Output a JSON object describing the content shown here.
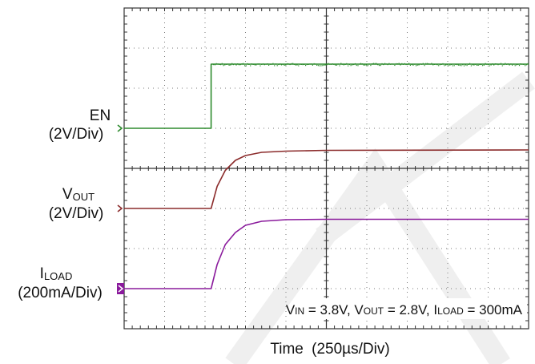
{
  "chart_data": {
    "type": "line",
    "title": "",
    "grid": true,
    "xlabel": {
      "text": "Time",
      "scale": "(250µs/Div)"
    },
    "x_divisions": 10,
    "y_divisions": 8,
    "x_unit": "div",
    "y_unit": "div",
    "annotation": {
      "vin": {
        "prefix": "V",
        "sub": "IN",
        "value": " = 3.8V, "
      },
      "vout": {
        "prefix": "V",
        "sub": "OUT",
        "value": " = 2.8V, "
      },
      "iload": {
        "prefix": "I",
        "sub": "LOAD",
        "value": " = 300mA"
      }
    },
    "series": [
      {
        "name_main": "EN",
        "name_sub": "",
        "scale": "(2V/Div)",
        "color": "#2e8b2e",
        "marker_style": "chevron",
        "ref_level_div": 5,
        "x": [
          0,
          2.15,
          2.15,
          10
        ],
        "y": [
          5,
          5,
          6.6,
          6.6
        ],
        "noisy_after": 2.15
      },
      {
        "name_main": "V",
        "name_sub": "OUT",
        "scale": "(2V/Div)",
        "color": "#8b2b2b",
        "marker_style": "chevron",
        "ref_level_div": 3,
        "x": [
          0,
          2.15,
          2.3,
          2.5,
          2.75,
          3.0,
          3.4,
          4.0,
          5.0,
          10
        ],
        "y": [
          3,
          3,
          3.55,
          3.95,
          4.2,
          4.32,
          4.4,
          4.43,
          4.45,
          4.46
        ],
        "noisy_after": null
      },
      {
        "name_main": "I",
        "name_sub": "LOAD",
        "scale": "(200mA/Div)",
        "color": "#8a1a9c",
        "marker_style": "filled",
        "ref_level_div": 1,
        "x": [
          0,
          2.15,
          2.3,
          2.5,
          2.75,
          3.0,
          3.4,
          4.0,
          5.0,
          10
        ],
        "y": [
          1,
          1,
          1.6,
          2.1,
          2.4,
          2.58,
          2.68,
          2.72,
          2.73,
          2.73
        ],
        "noisy_after": null
      }
    ]
  }
}
